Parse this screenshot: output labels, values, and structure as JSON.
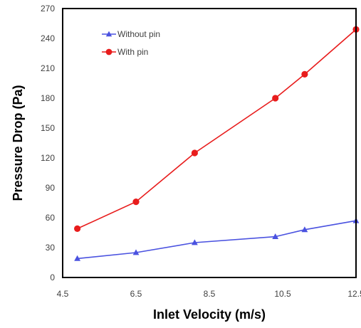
{
  "chart_data": {
    "type": "line",
    "title": "",
    "xlabel": "Inlet Velocity (m/s)",
    "ylabel": "Pressure Drop (Pa)",
    "xlim": [
      4.5,
      12.5
    ],
    "ylim": [
      0,
      270
    ],
    "x_ticks": [
      "4.5",
      "6.5",
      "8.5",
      "10.5",
      "12.5"
    ],
    "y_ticks": [
      "0",
      "30",
      "60",
      "90",
      "120",
      "150",
      "180",
      "210",
      "240",
      "270"
    ],
    "grid": false,
    "legend_position": "top-left",
    "series": [
      {
        "name": "Without pin",
        "color": "#4a52e0",
        "marker": "triangle",
        "x": [
          4.9,
          6.5,
          8.1,
          10.3,
          11.1,
          12.5
        ],
        "y": [
          19,
          25,
          35,
          41,
          48,
          57
        ]
      },
      {
        "name": "With pin",
        "color": "#e81c1c",
        "marker": "circle",
        "x": [
          4.9,
          6.5,
          8.1,
          10.3,
          11.1,
          12.5
        ],
        "y": [
          49,
          76,
          125,
          180,
          204,
          249
        ]
      }
    ]
  }
}
